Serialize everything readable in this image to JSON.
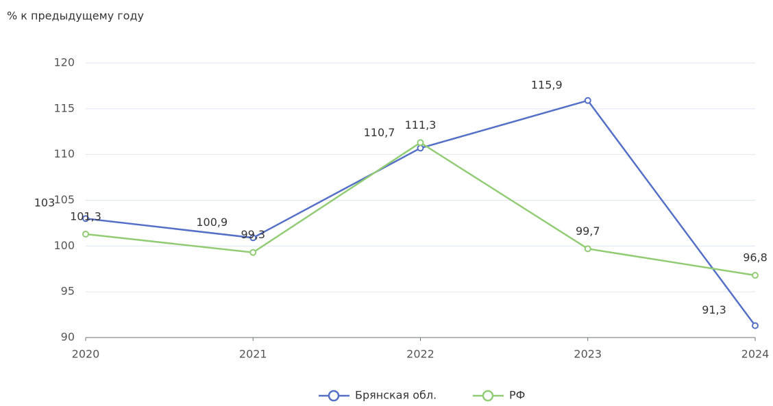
{
  "chart_data": {
    "type": "line",
    "y_axis_label": "% к предыдущему году",
    "categories": [
      "2020",
      "2021",
      "2022",
      "2023",
      "2024"
    ],
    "series": [
      {
        "name": "Брянская обл.",
        "color": "#5470c6",
        "values": [
          103,
          100.9,
          110.7,
          115.9,
          91.3
        ],
        "value_labels": [
          "103",
          "100,9",
          "110,7",
          "115,9",
          "91,3"
        ]
      },
      {
        "name": "РФ",
        "color": "#91cc75",
        "values": [
          101.3,
          99.3,
          111.3,
          99.7,
          96.8
        ],
        "value_labels": [
          "101,3",
          "99,3",
          "111,3",
          "99,7",
          "96,8"
        ]
      }
    ],
    "ylim": [
      90,
      120
    ],
    "yticks": [
      90,
      95,
      100,
      105,
      110,
      115,
      120
    ],
    "grid": true,
    "legend": "bottom"
  }
}
